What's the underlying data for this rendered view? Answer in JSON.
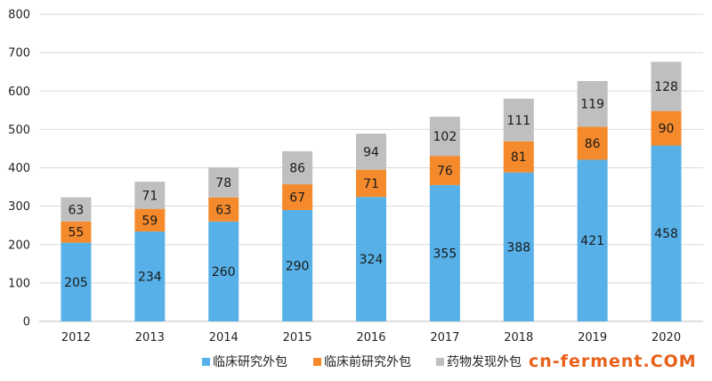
{
  "chart_data": {
    "type": "bar",
    "stacked": true,
    "categories": [
      "2012",
      "2013",
      "2014",
      "2015",
      "2016",
      "2017",
      "2018",
      "2019",
      "2020"
    ],
    "series": [
      {
        "name": "临床研究外包",
        "color": "#57b1e8",
        "values": [
          205,
          234,
          260,
          290,
          324,
          355,
          388,
          421,
          458
        ]
      },
      {
        "name": "临床前研究外包",
        "color": "#f58a2c",
        "values": [
          55,
          59,
          63,
          67,
          71,
          76,
          81,
          86,
          90
        ]
      },
      {
        "name": "药物发现外包",
        "color": "#bfbfbf",
        "values": [
          63,
          71,
          78,
          86,
          94,
          102,
          111,
          119,
          128
        ]
      }
    ],
    "ylim": [
      0,
      800
    ],
    "yticks": [
      0,
      100,
      200,
      300,
      400,
      500,
      600,
      700,
      800
    ],
    "grid": true,
    "legend": "bottom"
  },
  "watermark": {
    "text": "cn-ferment.COM"
  }
}
